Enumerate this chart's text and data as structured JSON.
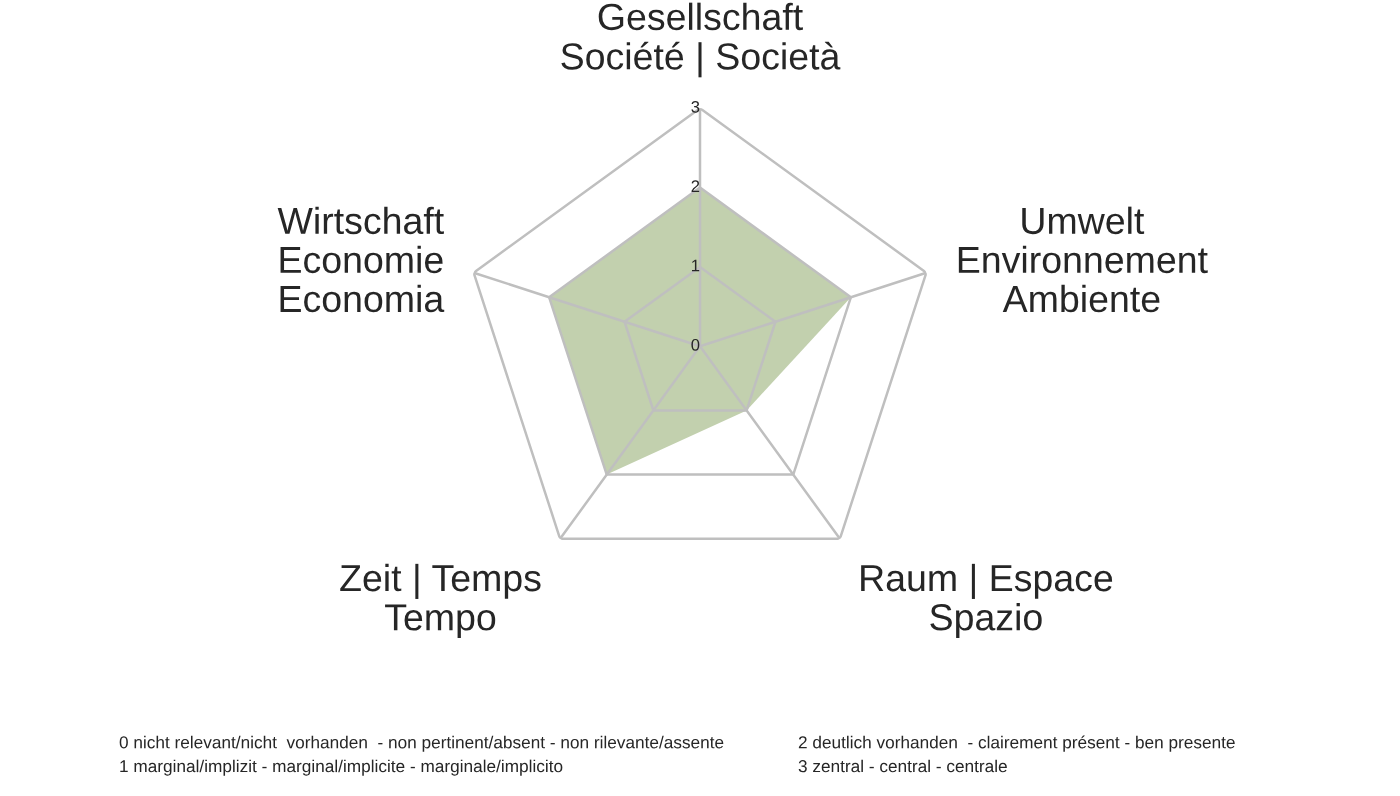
{
  "chart_data": {
    "type": "radar",
    "categories": [
      "Gesellschaft\nSociété | Società",
      "Umwelt\nEnvironnement\nAmbiente",
      "Raum | Espace\nSpazio",
      "Zeit | Temps\nTempo",
      "Wirtschaft\nEconomie\nEconomia"
    ],
    "series": [
      {
        "color": "#c2d0ae",
        "values": [
          2,
          2,
          1,
          2,
          2
        ]
      }
    ],
    "ylim": [
      0,
      3
    ],
    "yticks": [
      0,
      1,
      2,
      3
    ],
    "grid": true,
    "legend": false,
    "annotations": [
      "0 nicht relevant/nicht  vorhanden  - non pertinent/absent - non rilevante/assente",
      "1 marginal/implizit - marginal/implicite - marginale/implicito",
      "2 deutlich vorhanden  - clairement présent - ben presente",
      "3 zentral - central - centrale"
    ]
  }
}
